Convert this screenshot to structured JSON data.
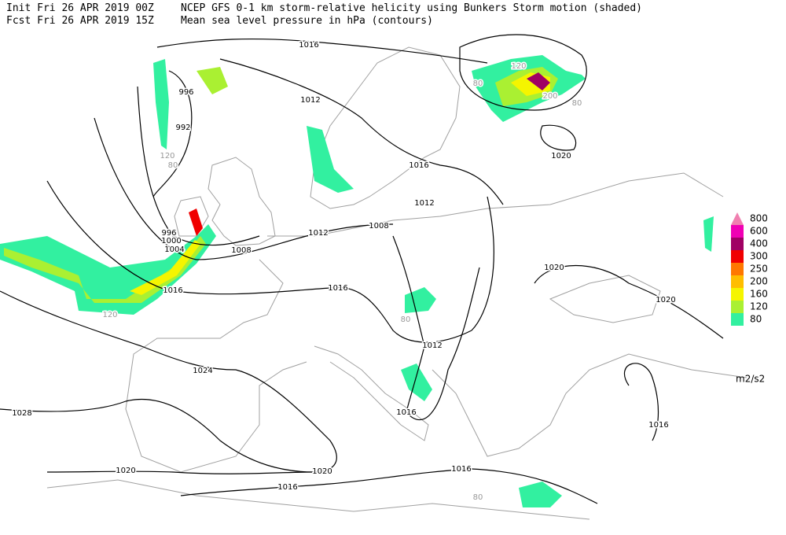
{
  "header": {
    "init": "Init  Fri 26 APR 2019 00Z",
    "fcst": "Fcst Fri 26 APR 2019 15Z",
    "shaded": "NCEP GFS 0-1 km storm-relative helicity using Bunkers Storm motion (shaded)",
    "contours": "Mean sea level pressure in hPa (contours)"
  },
  "legend": {
    "units": "m2/s2",
    "items": [
      {
        "value": 800,
        "color": "#f080b0"
      },
      {
        "value": 600,
        "color": "#f000b4"
      },
      {
        "value": 400,
        "color": "#a00064"
      },
      {
        "value": 300,
        "color": "#f00000"
      },
      {
        "value": 250,
        "color": "#ff7800"
      },
      {
        "value": 200,
        "color": "#ffbe00"
      },
      {
        "value": 160,
        "color": "#f5f500"
      },
      {
        "value": 120,
        "color": "#aaf032"
      },
      {
        "value": 80,
        "color": "#32f0a0"
      }
    ]
  },
  "contour_labels": [
    "1016",
    "1012",
    "996",
    "992",
    "1016",
    "1012",
    "1008",
    "1012",
    "1008",
    "996",
    "1000",
    "1004",
    "1016",
    "1016",
    "1020",
    "1020",
    "1012",
    "1024",
    "1028",
    "1016",
    "1016",
    "1020",
    "1020",
    "1016",
    "1016",
    "1020"
  ],
  "shade_labels": [
    "120",
    "80",
    "120",
    "80",
    "200",
    "80",
    "80",
    "80",
    "120"
  ]
}
